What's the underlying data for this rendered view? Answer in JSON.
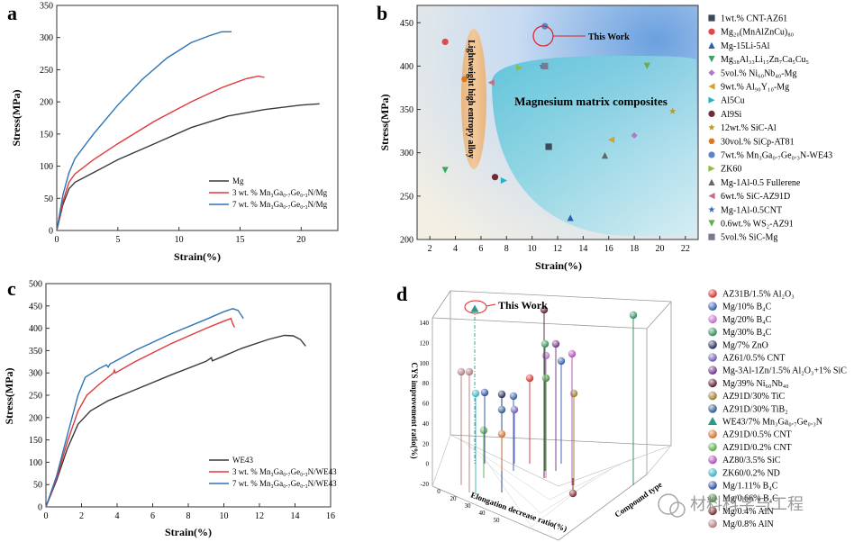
{
  "watermark": "材料科学与工程",
  "chart_data": [
    {
      "panel": "a",
      "type": "line",
      "xlabel": "Strain(%)",
      "ylabel": "Stress(MPa)",
      "xlim": [
        0,
        23
      ],
      "ylim": [
        0,
        350
      ],
      "xticks": [
        0,
        5,
        10,
        15,
        20
      ],
      "yticks": [
        0,
        50,
        100,
        150,
        200,
        250,
        300,
        350
      ],
      "legend": "bottom-right",
      "series": [
        {
          "name": "Mg",
          "color": "#3a3a3a",
          "points": [
            [
              0,
              0
            ],
            [
              0.5,
              40
            ],
            [
              1,
              65
            ],
            [
              1.5,
              75
            ],
            [
              3,
              90
            ],
            [
              5,
              110
            ],
            [
              8,
              135
            ],
            [
              11,
              160
            ],
            [
              14,
              178
            ],
            [
              17,
              188
            ],
            [
              20,
              195
            ],
            [
              21.5,
              197
            ]
          ]
        },
        {
          "name": "3 wt. % Mn3Ga0.7Ge0.3N/Mg",
          "color": "#e0393b",
          "points": [
            [
              0,
              0
            ],
            [
              0.5,
              45
            ],
            [
              1,
              75
            ],
            [
              1.5,
              88
            ],
            [
              3,
              110
            ],
            [
              5,
              135
            ],
            [
              8,
              170
            ],
            [
              11,
              200
            ],
            [
              13.5,
              222
            ],
            [
              15.5,
              236
            ],
            [
              16.5,
              240
            ],
            [
              17,
              238
            ]
          ]
        },
        {
          "name": "7 wt. % Mn3Ga0.7Ge0.3N/Mg",
          "color": "#2f74b5",
          "points": [
            [
              0,
              0
            ],
            [
              0.5,
              55
            ],
            [
              1,
              90
            ],
            [
              1.5,
              112
            ],
            [
              3,
              150
            ],
            [
              5,
              195
            ],
            [
              7,
              235
            ],
            [
              9,
              268
            ],
            [
              11,
              292
            ],
            [
              12.5,
              303
            ],
            [
              13.5,
              309
            ],
            [
              14.3,
              309
            ]
          ]
        }
      ]
    },
    {
      "panel": "b",
      "type": "scatter",
      "xlabel": "Strain(%)",
      "ylabel": "Stress(MPa)",
      "xlim": [
        1,
        23
      ],
      "ylim": [
        200,
        470
      ],
      "xticks": [
        2,
        4,
        6,
        8,
        10,
        12,
        14,
        16,
        18,
        20,
        22
      ],
      "yticks": [
        200,
        250,
        300,
        350,
        400,
        450
      ],
      "annotations": [
        "This Work",
        "Lightweight high entropy alloy",
        "Magnesium matrix composites"
      ],
      "series": [
        {
          "name": "1wt.% CNT-AZ61",
          "color": "#3d4a5a",
          "marker": "square",
          "points": [
            [
              11.3,
              307
            ]
          ]
        },
        {
          "name": "Mg20(MnAlZnCu)80",
          "color": "#e04a4a",
          "marker": "circle",
          "points": [
            [
              3.2,
              428
            ]
          ]
        },
        {
          "name": "Mg-15Li-5Al",
          "color": "#2b5fa8",
          "marker": "triangle-up",
          "points": [
            [
              13,
              225
            ]
          ]
        },
        {
          "name": "Mg38Al33Li15Zn7Ca5Cu5",
          "color": "#3aa565",
          "marker": "triangle-down",
          "points": [
            [
              3.2,
              280
            ]
          ]
        },
        {
          "name": "5vol.% Ni60Nb40-Mg",
          "color": "#b07ac8",
          "marker": "diamond",
          "points": [
            [
              18,
              320
            ]
          ]
        },
        {
          "name": "9wt.% Al90Y10-Mg",
          "color": "#d7a12a",
          "marker": "triangle-left",
          "points": [
            [
              16.2,
              315
            ]
          ]
        },
        {
          "name": "Al5Cu",
          "color": "#27b3c2",
          "marker": "triangle-right",
          "points": [
            [
              7.8,
              268
            ]
          ]
        },
        {
          "name": "Al9Si",
          "color": "#6e2b3a",
          "marker": "circle",
          "points": [
            [
              7.1,
              272
            ]
          ]
        },
        {
          "name": "12wt.% SiC-Al",
          "color": "#b89a2a",
          "marker": "star",
          "points": [
            [
              21,
              348
            ]
          ]
        },
        {
          "name": "30vol.% SiCp-AT81",
          "color": "#e2761e",
          "marker": "hexagon",
          "points": [
            [
              4.7,
              385
            ]
          ]
        },
        {
          "name": "7wt.% Mn3Ga0.7Ge0.3N-WE43",
          "color": "#5b84c4",
          "marker": "circle",
          "points": [
            [
              11,
              446
            ]
          ]
        },
        {
          "name": "ZK60",
          "color": "#8fbf3a",
          "marker": "triangle-right",
          "points": [
            [
              9,
              398
            ]
          ]
        },
        {
          "name": "Mg-1Al-0.5 Fullerene",
          "color": "#666666",
          "marker": "triangle-up",
          "points": [
            [
              15.7,
              297
            ]
          ]
        },
        {
          "name": "6wt.% SiC-AZ91D",
          "color": "#c2708a",
          "marker": "triangle-left",
          "points": [
            [
              6.8,
              381
            ]
          ]
        },
        {
          "name": "Mg-1Al-0.5CNT",
          "color": "#3f6fb5",
          "marker": "star",
          "points": [
            [
              10.8,
              400
            ]
          ]
        },
        {
          "name": "0.6wt.% WS2-AZ91",
          "color": "#6aaa55",
          "marker": "triangle-down",
          "points": [
            [
              19,
              400
            ]
          ]
        },
        {
          "name": "5vol.% SiC-Mg",
          "color": "#7a7a8e",
          "marker": "square",
          "points": [
            [
              11,
              400
            ]
          ]
        }
      ]
    },
    {
      "panel": "c",
      "type": "line",
      "xlabel": "Strain(%)",
      "ylabel": "Stress(MPa)",
      "xlim": [
        0,
        16
      ],
      "ylim": [
        0,
        500
      ],
      "xticks": [
        0,
        2,
        4,
        6,
        8,
        10,
        12,
        14,
        16
      ],
      "yticks": [
        0,
        50,
        100,
        150,
        200,
        250,
        300,
        350,
        400,
        450,
        500
      ],
      "legend": "bottom-right",
      "series": [
        {
          "name": "WE43",
          "color": "#3a3a3a",
          "points": [
            [
              0,
              0
            ],
            [
              0.6,
              60
            ],
            [
              1.2,
              130
            ],
            [
              1.8,
              185
            ],
            [
              2.5,
              215
            ],
            [
              3.5,
              238
            ],
            [
              5,
              262
            ],
            [
              7,
              295
            ],
            [
              9,
              326
            ],
            [
              9.3,
              334
            ],
            [
              9.35,
              327
            ],
            [
              11,
              355
            ],
            [
              12.5,
              375
            ],
            [
              13.4,
              384
            ],
            [
              13.9,
              383
            ],
            [
              14.3,
              375
            ],
            [
              14.6,
              360
            ]
          ]
        },
        {
          "name": "3 wt. % Mn3Ga0.7Ge0.3N/WE43",
          "color": "#e0393b",
          "points": [
            [
              0,
              0
            ],
            [
              0.6,
              65
            ],
            [
              1.2,
              145
            ],
            [
              1.8,
              215
            ],
            [
              2.3,
              250
            ],
            [
              3,
              275
            ],
            [
              3.8,
              300
            ],
            [
              3.85,
              306
            ],
            [
              3.9,
              300
            ],
            [
              5,
              325
            ],
            [
              7,
              365
            ],
            [
              9,
              400
            ],
            [
              10,
              416
            ],
            [
              10.4,
              422
            ],
            [
              10.5,
              410
            ],
            [
              10.6,
              402
            ]
          ]
        },
        {
          "name": "7 wt. % Mn3Ga0.7Ge0.3N/WE43",
          "color": "#2f74b5",
          "points": [
            [
              0,
              0
            ],
            [
              0.6,
              70
            ],
            [
              1.2,
              160
            ],
            [
              1.8,
              250
            ],
            [
              2.2,
              290
            ],
            [
              3,
              310
            ],
            [
              3.4,
              318
            ],
            [
              3.5,
              313
            ],
            [
              3.6,
              320
            ],
            [
              5,
              350
            ],
            [
              7,
              387
            ],
            [
              9,
              420
            ],
            [
              10,
              437
            ],
            [
              10.5,
              444
            ],
            [
              10.8,
              440
            ],
            [
              11.1,
              422
            ]
          ]
        }
      ]
    },
    {
      "panel": "d",
      "type": "scatter",
      "annotations": [
        "This Work"
      ],
      "axis_labels": [
        "CYS improvement ratio(%)",
        "Elongation decrease ratio(%)",
        "Compound type"
      ],
      "zticks": [
        -20,
        0,
        20,
        40,
        60,
        80,
        100,
        120,
        140
      ],
      "xticks": [
        0,
        20,
        30,
        40,
        50
      ],
      "legend_items": [
        {
          "name": "AZ31B/1.5% Al2O3",
          "color": "#d0312d",
          "marker": "sphere"
        },
        {
          "name": "Mg/10% B4C",
          "color": "#2f58a8",
          "marker": "sphere"
        },
        {
          "name": "Mg/20% B4C",
          "color": "#c06ac8",
          "marker": "sphere"
        },
        {
          "name": "Mg/30% B4C",
          "color": "#2e8b57",
          "marker": "sphere"
        },
        {
          "name": "Mg/7% ZnO",
          "color": "#1f2a55",
          "marker": "sphere"
        },
        {
          "name": "AZ61/0.5% CNT",
          "color": "#6a5ab0",
          "marker": "sphere"
        },
        {
          "name": "Mg-3Al-1Zn/1.5% Al2O3+1% SiC",
          "color": "#6a2f80",
          "marker": "sphere"
        },
        {
          "name": "Mg/39% Ni60Nb40",
          "color": "#5a1a2a",
          "marker": "sphere"
        },
        {
          "name": "AZ91D/30% TiC",
          "color": "#9a7a28",
          "marker": "sphere"
        },
        {
          "name": "AZ91D/30% TiB2",
          "color": "#2a5a8a",
          "marker": "sphere"
        },
        {
          "name": "WE43/7% Mn3Ga0.7Ge0.3N",
          "color": "#2a9a8a",
          "marker": "triangle"
        },
        {
          "name": "AZ91D/0.5% CNT",
          "color": "#d06a2a",
          "marker": "sphere"
        },
        {
          "name": "AZ91D/0.2% CNT",
          "color": "#5aa84a",
          "marker": "sphere"
        },
        {
          "name": "AZ80/3.5% SiC",
          "color": "#b04ab0",
          "marker": "sphere"
        },
        {
          "name": "ZK60/0.2% ND",
          "color": "#3ab0c0",
          "marker": "sphere"
        },
        {
          "name": "Mg/1.11% B4C",
          "color": "#2a4aa0",
          "marker": "sphere"
        },
        {
          "name": "Mg/0.66% B4C",
          "color": "#4a8a3a",
          "marker": "sphere"
        },
        {
          "name": "Mg/0.4% AlN",
          "color": "#7a2a2a",
          "marker": "sphere"
        },
        {
          "name": "Mg/0.8% AlN",
          "color": "#b07a7a",
          "marker": "sphere"
        }
      ]
    }
  ],
  "legend_labels": {
    "a": [
      "Mg",
      "3 wt. % Mn₃Ga₀.₇Ge₀.₃N/Mg",
      "7 wt. % Mn₃Ga₀.₇Ge₀.₃N/Mg"
    ],
    "c": [
      "WE43",
      "3 wt. % Mn₃Ga₀.₇Ge₀.₃N/WE43",
      "7 wt. % Mn₃Ga₀.₇Ge₀.₃N/WE43"
    ],
    "b": [
      "1wt.% CNT-AZ61",
      "Mg₂₀(MnAlZnCu)₈₀",
      "Mg-15Li-5Al",
      "Mg₃₈Al₃₃Li₁₅Zn₇Ca₅Cu₅",
      "5vol.% Ni₆₀Nb₄₀-Mg",
      "9wt.% Al₉₀Y₁₀-Mg",
      "Al5Cu",
      "Al9Si",
      "12wt.% SiC-Al",
      "30vol.% SiCp-AT81",
      "7wt.% Mn₃Ga₀.₇Ge₀.₃N-WE43",
      "ZK60",
      "Mg-1Al-0.5 Fullerene",
      "6wt.% SiC-AZ91D",
      "Mg-1Al-0.5CNT",
      "0.6wt.% WS₂-AZ91",
      "5vol.% SiC-Mg"
    ],
    "d": [
      "AZ31B/1.5% Al₂O₃",
      "Mg/10% B₄C",
      "Mg/20% B₄C",
      "Mg/30% B₄C",
      "Mg/7% ZnO",
      "AZ61/0.5% CNT",
      "Mg-3Al-1Zn/1.5% Al₂O₃+1% SiC",
      "Mg/39% Ni₆₀Nb₄₀",
      "AZ91D/30% TiC",
      "AZ91D/30% TiB₂",
      "WE43/7% Mn₃Ga₀.₇Ge₀.₃N",
      "AZ91D/0.5% CNT",
      "AZ91D/0.2% CNT",
      "AZ80/3.5% SiC",
      "ZK60/0.2% ND",
      "Mg/1.11% B₄C",
      "Mg/0.66% B₄C",
      "Mg/0.4% AlN",
      "Mg/0.8% AlN"
    ]
  },
  "panel_letters": [
    "a",
    "b",
    "c",
    "d"
  ]
}
